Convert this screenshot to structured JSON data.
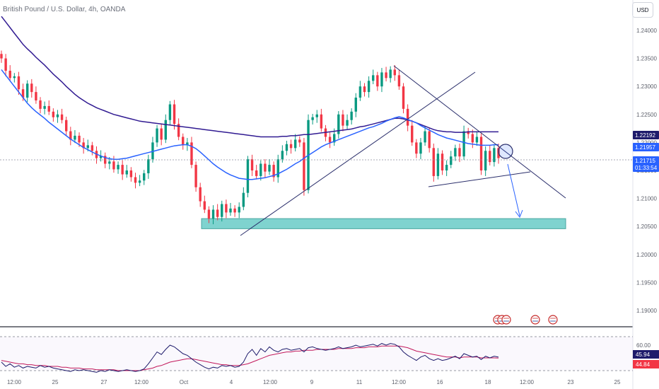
{
  "header": {
    "symbol_title": "British Pound / U.S. Dollar, 4h, OANDA",
    "currency_button": "USD"
  },
  "colors": {
    "bull": "#089981",
    "bear": "#f23645",
    "ema_short": "#2962ff",
    "ema_long": "#311b92",
    "support_zone": "#7fd3cf",
    "rsi_line": "#1e1b6b",
    "rsi_signal": "#c2185b",
    "axis_text": "#5d606b"
  },
  "price_labels": [
    {
      "name": "ema-long-price-label",
      "value": "1.22192",
      "bg": "#1e1b6b",
      "color": "#ffffff"
    },
    {
      "name": "ema-short-price-label",
      "value": "1.21957",
      "bg": "#2962ff",
      "color": "#ffffff"
    },
    {
      "name": "last-price-label",
      "value": "1.21715",
      "sub": "01:33:54",
      "bg": "#2962ff",
      "color": "#ffffff"
    }
  ],
  "rsi_labels": [
    {
      "name": "rsi-value-label",
      "value": "45.94",
      "bg": "#1e1b6b"
    },
    {
      "name": "rsi-signal-label",
      "value": "44.84",
      "bg": "#f23645"
    }
  ],
  "event_icons": [
    "us-flag-icon",
    "uk-flag-icon",
    "uk-flag-icon",
    "us-flag-icon",
    "uk-flag-icon"
  ],
  "chart_data": {
    "type": "candlestick",
    "title": "British Pound / U.S. Dollar, 4h, OANDA",
    "currency": "USD",
    "y_ticks": [
      "1.24000",
      "1.23500",
      "1.23000",
      "1.22500",
      "1.22000",
      "1.21500",
      "1.21000",
      "1.20500",
      "1.20000",
      "1.19500",
      "1.19000"
    ],
    "ylim": [
      1.1875,
      1.242
    ],
    "x_ticks": [
      "12:00",
      "25",
      "27",
      "12:00",
      "Oct",
      "4",
      "12:00",
      "9",
      "11",
      "12:00",
      "16",
      "18",
      "12:00",
      "23",
      "25"
    ],
    "closes": [
      1.235,
      1.2328,
      1.2315,
      1.2318,
      1.2295,
      1.228,
      1.2305,
      1.229,
      1.2275,
      1.226,
      1.2265,
      1.2255,
      1.2245,
      1.225,
      1.224,
      1.222,
      1.2205,
      1.2212,
      1.22,
      1.219,
      1.2195,
      1.2185,
      1.2172,
      1.2176,
      1.2162,
      1.2166,
      1.2152,
      1.216,
      1.2143,
      1.215,
      1.2138,
      1.2128,
      1.2132,
      1.2145,
      1.217,
      1.22,
      1.2225,
      1.2205,
      1.224,
      1.2268,
      1.2233,
      1.221,
      1.2195,
      1.22,
      1.216,
      1.212,
      1.2095,
      1.208,
      1.2064,
      1.208,
      1.2067,
      1.209,
      1.2075,
      1.2082,
      1.2075,
      1.2085,
      1.211,
      1.217,
      1.215,
      1.214,
      1.2162,
      1.2148,
      1.216,
      1.2138,
      1.217,
      1.2185,
      1.2197,
      1.219,
      1.2205,
      1.22,
      1.2115,
      1.224,
      1.2245,
      1.225,
      1.2225,
      1.221,
      1.22,
      1.2215,
      1.225,
      1.223,
      1.224,
      1.2255,
      1.228,
      1.23,
      1.229,
      1.231,
      1.232,
      1.23,
      1.2325,
      1.2315,
      1.233,
      1.232,
      1.23,
      1.226,
      1.223,
      1.22,
      1.218,
      1.22,
      1.222,
      1.219,
      1.214,
      1.218,
      1.215,
      1.216,
      1.2175,
      1.219,
      1.2175,
      1.222,
      1.2215,
      1.22,
      1.221,
      1.215,
      1.2185,
      1.2165,
      1.219,
      1.2172
    ],
    "ema_short": [
      1.233,
      1.232,
      1.231,
      1.23,
      1.229,
      1.228,
      1.227,
      1.2262,
      1.2255,
      1.2249,
      1.2243,
      1.2236,
      1.223,
      1.2224,
      1.2218,
      1.2212,
      1.2206,
      1.2201,
      1.2196,
      1.2191,
      1.2187,
      1.2183,
      1.2179,
      1.2176,
      1.2173,
      1.2171,
      1.217,
      1.217,
      1.2171,
      1.2172,
      1.2174,
      1.2176,
      1.2178,
      1.218,
      1.2182,
      1.2184,
      1.2186,
      1.2188,
      1.219,
      1.2192,
      1.2194,
      1.2195,
      1.2196,
      1.2196,
      1.2193,
      1.2189,
      1.2183,
      1.2176,
      1.2169,
      1.2162,
      1.2156,
      1.2151,
      1.2146,
      1.2142,
      1.2139,
      1.2136,
      1.2135,
      1.2134,
      1.2134,
      1.2135,
      1.2136,
      1.2137,
      1.2139,
      1.2141,
      1.2144,
      1.2148,
      1.2152,
      1.2157,
      1.2162,
      1.2166,
      1.2172,
      1.2177,
      1.2182,
      1.2187,
      1.2192,
      1.2196,
      1.2199,
      1.2202,
      1.2205,
      1.2208,
      1.2211,
      1.2214,
      1.2217,
      1.222,
      1.2223,
      1.2226,
      1.2228,
      1.2231,
      1.2234,
      1.2238,
      1.2241,
      1.2244,
      1.2246,
      1.2244,
      1.2241,
      1.2238,
      1.2235,
      1.223,
      1.2226,
      1.2222,
      1.2218,
      1.2214,
      1.2211,
      1.2208,
      1.2206,
      1.2204,
      1.2202,
      1.22,
      1.2198,
      1.2197,
      1.2196,
      1.2195,
      1.2195,
      1.2195,
      1.2196,
      1.2196
    ],
    "ema_long": [
      1.2425,
      1.2415,
      1.2405,
      1.2395,
      1.2385,
      1.2375,
      1.2367,
      1.236,
      1.2352,
      1.2345,
      1.2338,
      1.233,
      1.2322,
      1.2315,
      1.2308,
      1.23,
      1.2293,
      1.2286,
      1.228,
      1.2275,
      1.227,
      1.2266,
      1.2262,
      1.2259,
      1.2256,
      1.2253,
      1.225,
      1.2248,
      1.2246,
      1.2244,
      1.2242,
      1.224,
      1.2238,
      1.2237,
      1.2236,
      1.2235,
      1.2234,
      1.2233,
      1.2232,
      1.2231,
      1.223,
      1.2229,
      1.2228,
      1.2227,
      1.2226,
      1.2225,
      1.2224,
      1.2223,
      1.2222,
      1.2221,
      1.222,
      1.2219,
      1.2218,
      1.2217,
      1.2216,
      1.2215,
      1.2214,
      1.2213,
      1.2212,
      1.2211,
      1.221,
      1.221,
      1.221,
      1.221,
      1.221,
      1.2211,
      1.2211,
      1.2212,
      1.2212,
      1.2213,
      1.2214,
      1.2214,
      1.2215,
      1.2216,
      1.2217,
      1.2218,
      1.2219,
      1.222,
      1.2221,
      1.2222,
      1.2223,
      1.2224,
      1.2226,
      1.2228,
      1.2229,
      1.2231,
      1.2233,
      1.2235,
      1.2237,
      1.2239,
      1.2241,
      1.2243,
      1.2243,
      1.2242,
      1.224,
      1.2238,
      1.2235,
      1.2232,
      1.2229,
      1.2226,
      1.2223,
      1.2221,
      1.222,
      1.2219,
      1.2219,
      1.2218,
      1.2218,
      1.2218,
      1.2219,
      1.2219,
      1.2219,
      1.2219,
      1.2219,
      1.2219,
      1.2219,
      1.2219
    ],
    "support_zone": [
      1.2046,
      1.2064
    ],
    "rsi": {
      "labels": [
        "60.00",
        "45.94",
        "44.84"
      ],
      "ylim": [
        25,
        75
      ],
      "levels": [
        30,
        70
      ],
      "values": [
        40,
        35,
        38,
        34,
        36,
        33,
        35,
        34,
        33,
        36,
        34,
        35,
        33,
        32,
        31,
        30,
        29,
        31,
        30,
        31,
        30,
        29,
        28,
        30,
        29,
        31,
        30,
        29,
        30,
        31,
        30,
        29,
        30,
        32,
        38,
        45,
        52,
        49,
        55,
        60,
        58,
        54,
        50,
        48,
        44,
        40,
        37,
        34,
        32,
        34,
        33,
        36,
        35,
        36,
        34,
        35,
        40,
        50,
        55,
        48,
        56,
        52,
        58,
        54,
        52,
        55,
        56,
        54,
        55,
        56,
        52,
        57,
        58,
        56,
        55,
        54,
        55,
        56,
        58,
        56,
        57,
        58,
        60,
        58,
        59,
        60,
        61,
        59,
        62,
        60,
        62,
        61,
        58,
        52,
        48,
        45,
        42,
        46,
        48,
        44,
        42,
        44,
        42,
        43,
        45,
        47,
        44,
        50,
        48,
        46,
        47,
        43,
        47,
        45,
        47,
        45.94
      ],
      "signal": [
        42,
        41,
        40,
        39,
        38,
        38,
        37,
        37,
        36,
        36,
        36,
        35,
        35,
        35,
        34,
        34,
        33,
        33,
        33,
        32,
        32,
        32,
        31,
        31,
        31,
        31,
        31,
        30,
        30,
        30,
        30,
        30,
        30,
        31,
        32,
        33,
        35,
        36,
        38,
        40,
        41,
        42,
        43,
        44,
        44,
        43,
        42,
        41,
        40,
        39,
        38,
        37,
        37,
        36,
        36,
        36,
        37,
        38,
        40,
        42,
        44,
        46,
        48,
        49,
        50,
        51,
        52,
        52,
        53,
        53,
        54,
        54,
        54,
        55,
        55,
        55,
        55,
        55,
        56,
        56,
        56,
        56,
        57,
        57,
        57,
        58,
        58,
        58,
        59,
        59,
        59,
        59,
        59,
        58,
        57,
        55,
        53,
        52,
        51,
        50,
        49,
        48,
        47,
        46,
        46,
        46,
        45,
        46,
        46,
        46,
        46,
        45,
        45,
        45,
        45,
        44.84
      ]
    }
  }
}
